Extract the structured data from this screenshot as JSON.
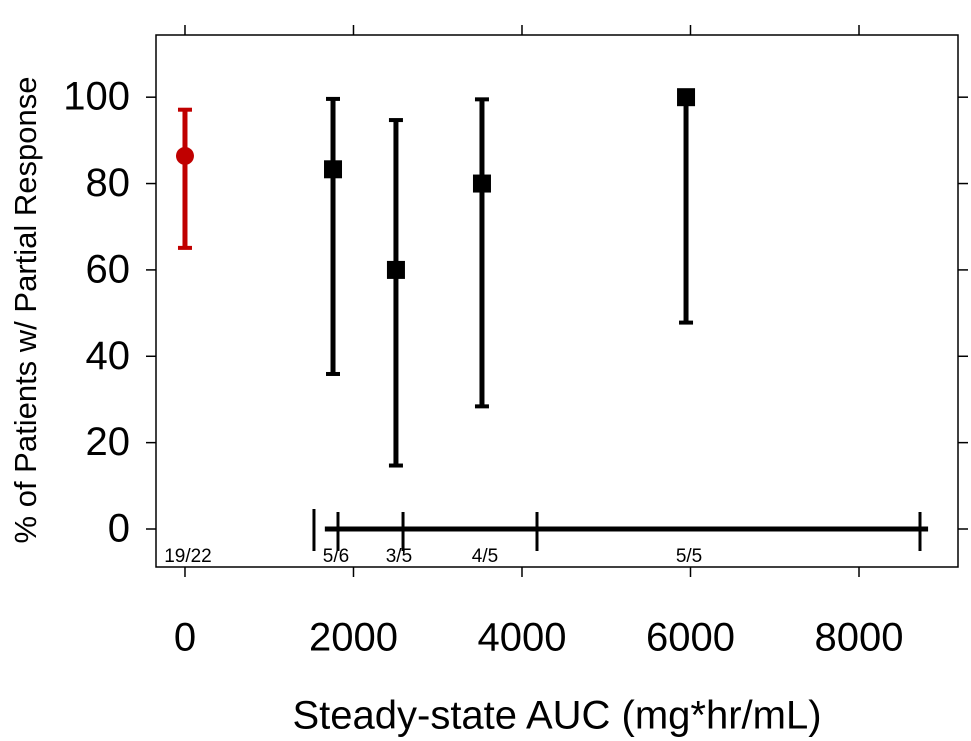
{
  "chart_data": {
    "type": "scatter",
    "x_label": "Steady-state AUC (mg*hr/mL)",
    "y_label": "% of Patients w/ Partial Response",
    "xlim": [
      -344,
      9175
    ],
    "ylim": [
      -8.8,
      114.4
    ],
    "xticks": [
      0,
      2000,
      4000,
      6000,
      8000
    ],
    "yticks": [
      0,
      20,
      40,
      60,
      80,
      100
    ],
    "series": [
      {
        "color": "#c00000",
        "marker": "circle",
        "x": [
          0
        ],
        "values": [
          86.4
        ],
        "lower": [
          65.1
        ],
        "upper": [
          97.1
        ],
        "labels": [
          "19/22"
        ]
      },
      {
        "color": "#000000",
        "marker": "square",
        "x": [
          1757,
          2504,
          3525,
          5947
        ],
        "values": [
          83.3,
          60,
          80,
          100
        ],
        "lower": [
          35.9,
          14.7,
          28.4,
          47.8
        ],
        "upper": [
          99.6,
          94.7,
          99.5,
          100
        ],
        "labels": [
          "5/6",
          "3/5",
          "4/5",
          "5/5"
        ]
      }
    ],
    "range_bar": {
      "y": 0,
      "start": 1660,
      "end": 8820,
      "edges": [
        1816,
        2588,
        4178,
        8724
      ],
      "marker": 1531
    }
  }
}
